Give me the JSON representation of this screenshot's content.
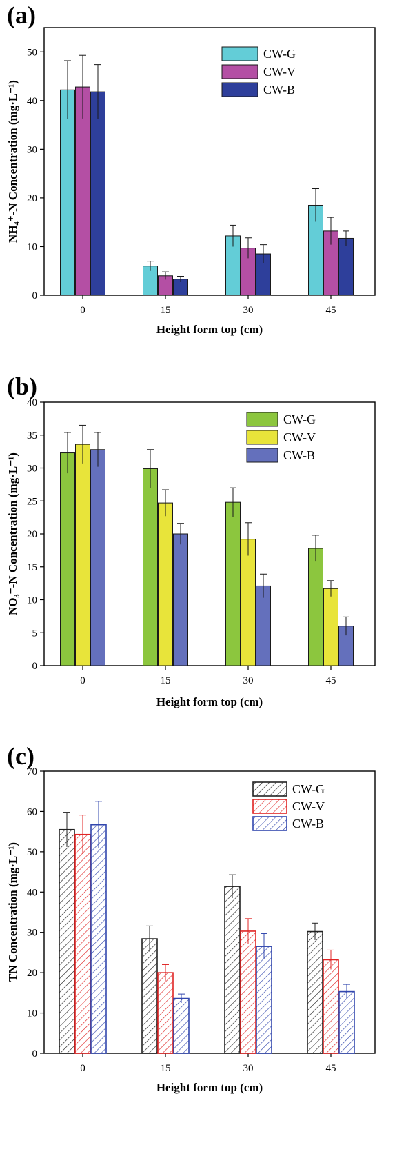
{
  "chart_data": [
    {
      "type": "bar",
      "panel_label": "(a)",
      "xlabel": "Height form top (cm)",
      "ylabel": "NH₄⁺-N Concentration (mg·L⁻¹)",
      "categories": [
        "0",
        "15",
        "30",
        "45"
      ],
      "ylim": [
        0,
        55
      ],
      "yticks": [
        0,
        10,
        20,
        30,
        40,
        50
      ],
      "legend_position": "top-right",
      "series": [
        {
          "name": "CW-G",
          "color": "#63CDD7",
          "values": [
            42.2,
            6.0,
            12.2,
            18.5
          ],
          "errors": [
            6.0,
            1.0,
            2.2,
            3.4
          ]
        },
        {
          "name": "CW-V",
          "color": "#B44FA4",
          "values": [
            42.8,
            4.0,
            9.7,
            13.2
          ],
          "errors": [
            6.5,
            0.8,
            2.1,
            2.8
          ]
        },
        {
          "name": "CW-B",
          "color": "#2E3F9B",
          "values": [
            41.8,
            3.3,
            8.5,
            11.7
          ],
          "errors": [
            5.6,
            0.6,
            1.9,
            1.5
          ]
        }
      ]
    },
    {
      "type": "bar",
      "panel_label": "(b)",
      "xlabel": "Height form top (cm)",
      "ylabel": "NO₃⁻-N Concentration (mg·L⁻¹)",
      "categories": [
        "0",
        "15",
        "30",
        "45"
      ],
      "ylim": [
        0,
        40
      ],
      "yticks": [
        0,
        5,
        10,
        15,
        20,
        25,
        30,
        35,
        40
      ],
      "legend_position": "top-right",
      "series": [
        {
          "name": "CW-G",
          "color": "#8CC63E",
          "values": [
            32.3,
            29.9,
            24.8,
            17.8
          ],
          "errors": [
            3.1,
            2.9,
            2.2,
            2.0
          ]
        },
        {
          "name": "CW-V",
          "color": "#E8E43A",
          "values": [
            33.6,
            24.7,
            19.2,
            11.7
          ],
          "errors": [
            2.9,
            2.0,
            2.5,
            1.2
          ]
        },
        {
          "name": "CW-B",
          "color": "#6470BC",
          "values": [
            32.8,
            20.0,
            12.1,
            6.0
          ],
          "errors": [
            2.6,
            1.6,
            1.8,
            1.4
          ]
        }
      ]
    },
    {
      "type": "bar",
      "panel_label": "(c)",
      "xlabel": "Height form top (cm)",
      "ylabel": "TN Concentration (mg·L⁻¹)",
      "categories": [
        "0",
        "15",
        "30",
        "45"
      ],
      "ylim": [
        0,
        70
      ],
      "yticks": [
        0,
        10,
        20,
        30,
        40,
        50,
        60,
        70
      ],
      "legend_position": "top-right",
      "hatched": true,
      "series": [
        {
          "name": "CW-G",
          "color": "#222222",
          "values": [
            55.5,
            28.4,
            41.4,
            30.2
          ],
          "errors": [
            4.3,
            3.2,
            2.9,
            2.1
          ]
        },
        {
          "name": "CW-V",
          "color": "#E02424",
          "values": [
            54.3,
            20.0,
            30.3,
            23.2
          ],
          "errors": [
            4.8,
            2.0,
            3.1,
            2.4
          ]
        },
        {
          "name": "CW-B",
          "color": "#3247AE",
          "values": [
            56.7,
            13.6,
            26.5,
            15.3
          ],
          "errors": [
            5.8,
            1.1,
            3.2,
            1.8
          ]
        }
      ]
    }
  ]
}
